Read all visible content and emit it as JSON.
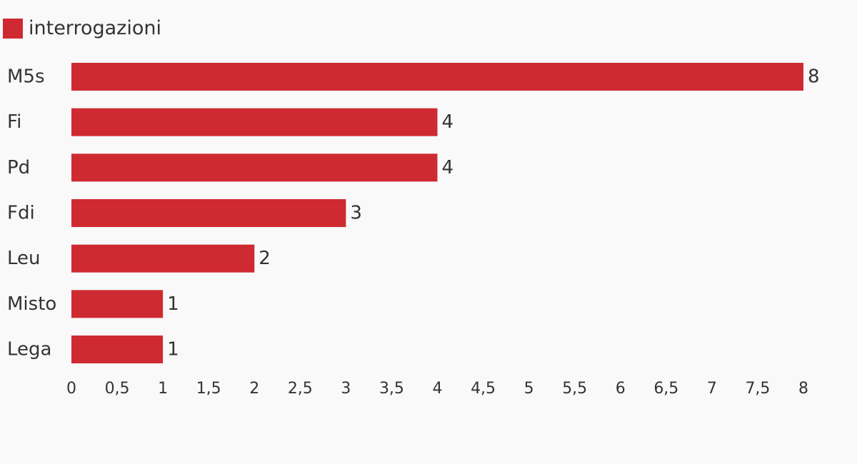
{
  "legend": {
    "label": "interrogazioni",
    "color": "#cf2a31"
  },
  "chart_data": {
    "type": "bar",
    "orientation": "horizontal",
    "title": "",
    "xlabel": "",
    "ylabel": "",
    "categories": [
      "M5s",
      "Fi",
      "Pd",
      "Fdi",
      "Leu",
      "Misto",
      "Lega"
    ],
    "series": [
      {
        "name": "interrogazioni",
        "color": "#cf2a31",
        "values": [
          8,
          4,
          4,
          3,
          2,
          1,
          1
        ]
      }
    ],
    "xlim": [
      0,
      8
    ],
    "xticks": [
      0,
      0.5,
      1,
      1.5,
      2,
      2.5,
      3,
      3.5,
      4,
      4.5,
      5,
      5.5,
      6,
      6.5,
      7,
      7.5,
      8
    ],
    "xtick_labels": [
      "0",
      "0,5",
      "1",
      "1,5",
      "2",
      "2,5",
      "3",
      "3,5",
      "4",
      "4,5",
      "5",
      "5,5",
      "6",
      "6,5",
      "7",
      "7,5",
      "8"
    ],
    "grid": false,
    "legend_position": "top-left"
  }
}
